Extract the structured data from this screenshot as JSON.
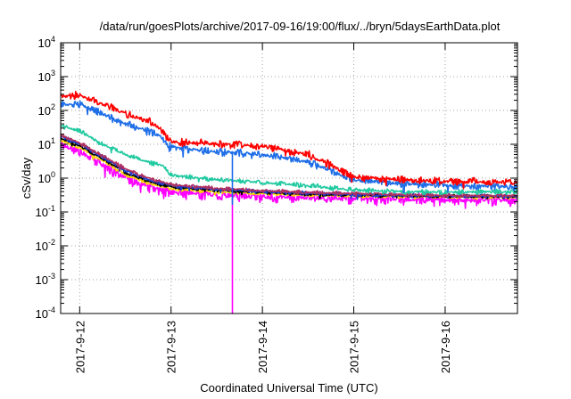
{
  "chart_data": {
    "type": "line",
    "title": "/data/run/goesPlots/archive/2017-09-16/19:00/flux/../bryn/5daysEarthData.plot",
    "xlabel": "Coordinated Universal Time (UTC)",
    "ylabel": "cSv/day",
    "yscale": "log",
    "ylim": [
      0.0001,
      10000
    ],
    "xlim": [
      "2017-09-11T19:00",
      "2017-09-16T19:00"
    ],
    "grid": true,
    "legend": "none",
    "x_ticks": [
      "2017-9-12",
      "2017-9-13",
      "2017-9-14",
      "2017-9-15",
      "2017-9-16"
    ],
    "y_ticks": [
      {
        "value": 0.0001,
        "base": "10",
        "exp": "-4"
      },
      {
        "value": 0.001,
        "base": "10",
        "exp": "-3"
      },
      {
        "value": 0.01,
        "base": "10",
        "exp": "-2"
      },
      {
        "value": 0.1,
        "base": "10",
        "exp": "-1"
      },
      {
        "value": 1,
        "base": "10",
        "exp": "0"
      },
      {
        "value": 10,
        "base": "10",
        "exp": "1"
      },
      {
        "value": 100,
        "base": "10",
        "exp": "2"
      },
      {
        "value": 1000,
        "base": "10",
        "exp": "3"
      },
      {
        "value": 10000,
        "base": "10",
        "exp": "4"
      }
    ],
    "series": [
      {
        "color": "#ff00ff",
        "noise": 0.12,
        "dip": {
          "x": "2017-09-13T16:00",
          "y": 0.0001
        },
        "points": [
          [
            "2017-09-11T19:00",
            10
          ],
          [
            "2017-09-12T00:00",
            6
          ],
          [
            "2017-09-12T06:00",
            2.5
          ],
          [
            "2017-09-12T12:00",
            1.0
          ],
          [
            "2017-09-12T18:00",
            0.55
          ],
          [
            "2017-09-13T00:00",
            0.38
          ],
          [
            "2017-09-13T12:00",
            0.32
          ],
          [
            "2017-09-14T00:00",
            0.28
          ],
          [
            "2017-09-14T12:00",
            0.27
          ],
          [
            "2017-09-15T00:00",
            0.25
          ],
          [
            "2017-09-15T12:00",
            0.24
          ],
          [
            "2017-09-16T00:00",
            0.23
          ],
          [
            "2017-09-16T19:00",
            0.22
          ]
        ]
      },
      {
        "color": "#ffd700",
        "noise": 0.04,
        "points": [
          [
            "2017-09-11T19:00",
            13
          ],
          [
            "2017-09-12T00:00",
            8
          ],
          [
            "2017-09-12T06:00",
            3.3
          ],
          [
            "2017-09-12T12:00",
            1.3
          ],
          [
            "2017-09-12T18:00",
            0.7
          ],
          [
            "2017-09-13T00:00",
            0.48
          ],
          [
            "2017-09-13T12:00",
            0.4
          ],
          [
            "2017-09-14T00:00",
            0.35
          ],
          [
            "2017-09-14T12:00",
            0.32
          ],
          [
            "2017-09-15T00:00",
            0.3
          ],
          [
            "2017-09-15T12:00",
            0.29
          ],
          [
            "2017-09-16T00:00",
            0.28
          ],
          [
            "2017-09-16T19:00",
            0.27
          ]
        ]
      },
      {
        "color": "#000000",
        "noise": 0.04,
        "points": [
          [
            "2017-09-11T19:00",
            15
          ],
          [
            "2017-09-12T00:00",
            9
          ],
          [
            "2017-09-12T06:00",
            3.8
          ],
          [
            "2017-09-12T12:00",
            1.5
          ],
          [
            "2017-09-12T18:00",
            0.8
          ],
          [
            "2017-09-13T00:00",
            0.55
          ],
          [
            "2017-09-13T12:00",
            0.45
          ],
          [
            "2017-09-14T00:00",
            0.38
          ],
          [
            "2017-09-14T12:00",
            0.34
          ],
          [
            "2017-09-15T00:00",
            0.32
          ],
          [
            "2017-09-15T12:00",
            0.3
          ],
          [
            "2017-09-16T00:00",
            0.29
          ],
          [
            "2017-09-16T19:00",
            0.28
          ]
        ]
      },
      {
        "color": "#1a3fcf",
        "noise": 0.04,
        "points": [
          [
            "2017-09-11T19:00",
            17
          ],
          [
            "2017-09-12T00:00",
            10
          ],
          [
            "2017-09-12T06:00",
            4.2
          ],
          [
            "2017-09-12T12:00",
            1.7
          ],
          [
            "2017-09-12T18:00",
            0.9
          ],
          [
            "2017-09-13T00:00",
            0.6
          ],
          [
            "2017-09-13T12:00",
            0.48
          ],
          [
            "2017-09-14T00:00",
            0.4
          ],
          [
            "2017-09-14T12:00",
            0.36
          ],
          [
            "2017-09-15T00:00",
            0.33
          ],
          [
            "2017-09-15T12:00",
            0.31
          ],
          [
            "2017-09-16T00:00",
            0.3
          ],
          [
            "2017-09-16T19:00",
            0.29
          ]
        ]
      },
      {
        "color": "#b03060",
        "noise": 0.04,
        "points": [
          [
            "2017-09-11T19:00",
            19
          ],
          [
            "2017-09-12T00:00",
            11
          ],
          [
            "2017-09-12T06:00",
            4.6
          ],
          [
            "2017-09-12T12:00",
            1.9
          ],
          [
            "2017-09-12T18:00",
            1.0
          ],
          [
            "2017-09-13T00:00",
            0.65
          ],
          [
            "2017-09-13T12:00",
            0.5
          ],
          [
            "2017-09-14T00:00",
            0.42
          ],
          [
            "2017-09-14T12:00",
            0.38
          ],
          [
            "2017-09-15T00:00",
            0.35
          ],
          [
            "2017-09-15T12:00",
            0.33
          ],
          [
            "2017-09-16T00:00",
            0.31
          ],
          [
            "2017-09-16T19:00",
            0.3
          ]
        ]
      },
      {
        "color": "#20c9a0",
        "noise": 0.05,
        "points": [
          [
            "2017-09-11T19:00",
            35
          ],
          [
            "2017-09-12T00:00",
            25
          ],
          [
            "2017-09-12T06:00",
            10
          ],
          [
            "2017-09-12T12:00",
            5
          ],
          [
            "2017-09-12T18:00",
            3.0
          ],
          [
            "2017-09-12T22:00",
            2.3
          ],
          [
            "2017-09-13T00:00",
            1.2
          ],
          [
            "2017-09-13T12:00",
            0.9
          ],
          [
            "2017-09-14T00:00",
            0.75
          ],
          [
            "2017-09-14T12:00",
            0.6
          ],
          [
            "2017-09-15T00:00",
            0.45
          ],
          [
            "2017-09-15T12:00",
            0.4
          ],
          [
            "2017-09-16T00:00",
            0.38
          ],
          [
            "2017-09-16T19:00",
            0.4
          ]
        ]
      },
      {
        "color": "#1e6ee8",
        "noise": 0.08,
        "dip": {
          "x": "2017-09-13T16:00",
          "y": 0.17
        },
        "points": [
          [
            "2017-09-11T19:00",
            150
          ],
          [
            "2017-09-12T00:00",
            150
          ],
          [
            "2017-09-12T06:00",
            80
          ],
          [
            "2017-09-12T12:00",
            40
          ],
          [
            "2017-09-12T18:00",
            25
          ],
          [
            "2017-09-12T21:00",
            18
          ],
          [
            "2017-09-13T00:00",
            8
          ],
          [
            "2017-09-13T12:00",
            6
          ],
          [
            "2017-09-14T00:00",
            5
          ],
          [
            "2017-09-14T12:00",
            3
          ],
          [
            "2017-09-15T00:00",
            0.9
          ],
          [
            "2017-09-15T12:00",
            0.7
          ],
          [
            "2017-09-16T00:00",
            0.6
          ],
          [
            "2017-09-16T19:00",
            0.55
          ]
        ]
      },
      {
        "color": "#ff0000",
        "noise": 0.08,
        "points": [
          [
            "2017-09-11T19:00",
            250
          ],
          [
            "2017-09-12T00:00",
            280
          ],
          [
            "2017-09-12T06:00",
            150
          ],
          [
            "2017-09-12T12:00",
            80
          ],
          [
            "2017-09-12T18:00",
            50
          ],
          [
            "2017-09-12T21:00",
            30
          ],
          [
            "2017-09-13T00:00",
            12
          ],
          [
            "2017-09-13T12:00",
            10
          ],
          [
            "2017-09-14T00:00",
            9
          ],
          [
            "2017-09-14T12:00",
            5
          ],
          [
            "2017-09-15T00:00",
            1.1
          ],
          [
            "2017-09-15T12:00",
            0.9
          ],
          [
            "2017-09-16T00:00",
            0.8
          ],
          [
            "2017-09-16T19:00",
            0.75
          ]
        ]
      }
    ]
  }
}
